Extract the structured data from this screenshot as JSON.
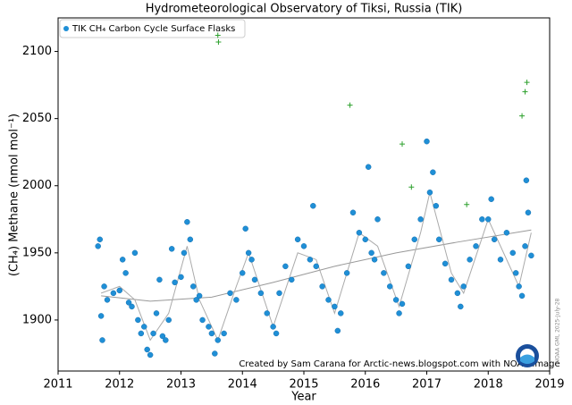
{
  "chart_data": {
    "type": "scatter",
    "title": "Hydrometeorological Observatory of Tiksi, Russia (TIK)",
    "x_label": "Year",
    "y_label": "(CH₄) Methane (nmol mol⁻¹)",
    "annotations": [
      "Created by Sam Carana for Arctic-news.blogspot.com with NOAA image",
      "NOAA GML 2025-July-28"
    ],
    "xlim": [
      2011,
      2019
    ],
    "xticks": [
      2011,
      2012,
      2013,
      2014,
      2015,
      2016,
      2017,
      2018,
      2019
    ],
    "ylim": [
      1862,
      2125
    ],
    "yticks": [
      1900,
      1950,
      2000,
      2050,
      2100
    ],
    "legend": "upper left",
    "series": [
      {
        "name": "TIK CH₄ Carbon Cycle Surface Flasks",
        "color": "#1f8fd6",
        "marker": "circle",
        "x": [
          2011.65,
          2011.68,
          2011.7,
          2011.72,
          2011.75,
          2011.8,
          2011.9,
          2012.0,
          2012.05,
          2012.1,
          2012.15,
          2012.2,
          2012.25,
          2012.3,
          2012.35,
          2012.4,
          2012.45,
          2012.5,
          2012.55,
          2012.6,
          2012.65,
          2012.7,
          2012.75,
          2012.8,
          2012.85,
          2012.9,
          2013.0,
          2013.05,
          2013.1,
          2013.15,
          2013.2,
          2013.25,
          2013.3,
          2013.35,
          2013.45,
          2013.5,
          2013.55,
          2013.6,
          2013.7,
          2013.8,
          2013.9,
          2014.0,
          2014.05,
          2014.1,
          2014.15,
          2014.2,
          2014.3,
          2014.4,
          2014.5,
          2014.55,
          2014.6,
          2014.7,
          2014.8,
          2014.9,
          2015.0,
          2015.1,
          2015.15,
          2015.2,
          2015.3,
          2015.4,
          2015.5,
          2015.55,
          2015.6,
          2015.7,
          2015.8,
          2015.9,
          2016.0,
          2016.05,
          2016.1,
          2016.15,
          2016.2,
          2016.3,
          2016.4,
          2016.5,
          2016.55,
          2016.6,
          2016.7,
          2016.8,
          2016.9,
          2017.0,
          2017.05,
          2017.1,
          2017.15,
          2017.2,
          2017.3,
          2017.4,
          2017.5,
          2017.55,
          2017.6,
          2017.7,
          2017.8,
          2017.9,
          2018.0,
          2018.05,
          2018.1,
          2018.2,
          2018.3,
          2018.4,
          2018.45,
          2018.5,
          2018.55,
          2018.6,
          2018.62,
          2018.65,
          2018.7
        ],
        "values": [
          1955,
          1960,
          1903,
          1885,
          1925,
          1915,
          1920,
          1922,
          1945,
          1935,
          1913,
          1910,
          1950,
          1900,
          1890,
          1895,
          1878,
          1874,
          1890,
          1905,
          1930,
          1888,
          1885,
          1900,
          1953,
          1928,
          1932,
          1950,
          1973,
          1960,
          1925,
          1915,
          1918,
          1900,
          1895,
          1890,
          1875,
          1885,
          1890,
          1920,
          1915,
          1935,
          1968,
          1950,
          1945,
          1930,
          1920,
          1905,
          1895,
          1890,
          1920,
          1940,
          1930,
          1960,
          1955,
          1945,
          1985,
          1940,
          1925,
          1915,
          1910,
          1892,
          1905,
          1935,
          1980,
          1965,
          1960,
          2014,
          1950,
          1945,
          1975,
          1935,
          1925,
          1915,
          1905,
          1912,
          1940,
          1960,
          1975,
          2033,
          1995,
          2010,
          1985,
          1960,
          1942,
          1930,
          1920,
          1910,
          1925,
          1945,
          1955,
          1975,
          1975,
          1990,
          1960,
          1945,
          1965,
          1950,
          1935,
          1925,
          1918,
          1955,
          2004,
          1980,
          1948
        ]
      },
      {
        "color": "#2ca02c",
        "marker": "plus",
        "x": [
          2013.6,
          2013.61,
          2015.75,
          2016.6,
          2016.75,
          2017.65,
          2018.55,
          2018.6,
          2018.63
        ],
        "values": [
          2112,
          2107,
          2060,
          2031,
          1999,
          1986,
          2052,
          2070,
          2077
        ]
      },
      {
        "color": "#aaaaaa",
        "marker": "line",
        "x": [
          2011.7,
          2012.0,
          2012.25,
          2012.5,
          2012.8,
          2013.1,
          2013.3,
          2013.6,
          2013.9,
          2014.1,
          2014.5,
          2014.9,
          2015.2,
          2015.5,
          2015.9,
          2016.2,
          2016.55,
          2016.9,
          2017.05,
          2017.4,
          2017.6,
          2018.0,
          2018.5,
          2018.7
        ],
        "values": [
          1920,
          1925,
          1915,
          1885,
          1905,
          1955,
          1915,
          1885,
          1925,
          1950,
          1895,
          1950,
          1945,
          1905,
          1965,
          1955,
          1910,
          1965,
          1995,
          1935,
          1920,
          1975,
          1925,
          1965
        ]
      },
      {
        "color": "#999999",
        "marker": "line",
        "x": [
          2011.7,
          2012.5,
          2013.5,
          2014.5,
          2015.5,
          2016.5,
          2017.5,
          2018.7
        ],
        "values": [
          1918,
          1914,
          1917,
          1928,
          1940,
          1950,
          1958,
          1967
        ]
      }
    ]
  }
}
